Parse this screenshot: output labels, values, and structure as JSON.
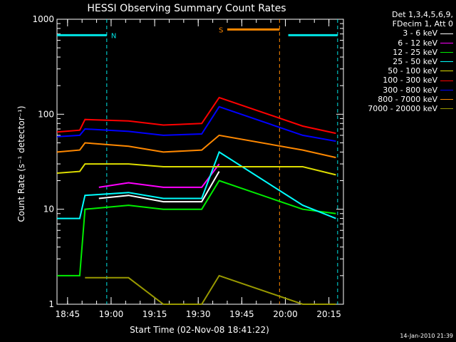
{
  "chart_data": {
    "type": "line",
    "title": "HESSI Observing Summary Count Rates",
    "xlabel": "Start Time (02-Nov-08 18:41:22)",
    "ylabel": "Count Rate (s⁻¹ detector⁻¹)",
    "yscale": "log",
    "ylim": [
      1,
      1000
    ],
    "yticks": [
      "1",
      "10",
      "100",
      "1000"
    ],
    "xlim": [
      "18:41:22",
      "20:20:00"
    ],
    "xticks": [
      "18:45",
      "19:00",
      "19:15",
      "19:30",
      "19:45",
      "20:00",
      "20:15"
    ],
    "legend_header": [
      "Det 1,3,4,5,6,9,",
      "FDecim 1, Att 0"
    ],
    "legend_position": "right",
    "flags": [
      {
        "label": "N",
        "color": "#00e5e5",
        "segments": [
          [
            "18:41:22",
            "18:58:30"
          ],
          [
            "20:01:00",
            "20:18:00"
          ]
        ],
        "y": 680
      },
      {
        "label": "S",
        "color": "#ff8800",
        "segments": [
          [
            "19:40:00",
            "19:58:00"
          ]
        ],
        "y": 780
      }
    ],
    "series": [
      {
        "name": "3 - 6 keV",
        "color": "#ffffff",
        "values": [
          [
            18.93,
            13
          ],
          [
            19.1,
            14
          ],
          [
            19.3,
            12
          ],
          [
            19.52,
            12
          ],
          [
            19.62,
            25
          ]
        ]
      },
      {
        "name": "6 - 12 keV",
        "color": "#ff00ff",
        "values": [
          [
            18.93,
            17
          ],
          [
            19.1,
            19
          ],
          [
            19.3,
            17
          ],
          [
            19.52,
            17
          ],
          [
            19.62,
            30
          ]
        ]
      },
      {
        "name": "12 - 25 keV",
        "color": "#00ee00",
        "values": [
          [
            18.69,
            2
          ],
          [
            18.82,
            2
          ],
          [
            18.85,
            10
          ],
          [
            19.1,
            11
          ],
          [
            19.3,
            10
          ],
          [
            19.52,
            10
          ],
          [
            19.62,
            20
          ],
          [
            20.1,
            10
          ],
          [
            20.29,
            9
          ]
        ]
      },
      {
        "name": "25 - 50 keV",
        "color": "#00ffff",
        "values": [
          [
            18.69,
            8
          ],
          [
            18.82,
            8
          ],
          [
            18.85,
            14
          ],
          [
            19.1,
            15
          ],
          [
            19.3,
            13
          ],
          [
            19.52,
            13
          ],
          [
            19.62,
            40
          ],
          [
            20.1,
            11
          ],
          [
            20.29,
            8
          ]
        ]
      },
      {
        "name": "50 - 100 keV",
        "color": "#dddd00",
        "values": [
          [
            18.69,
            24
          ],
          [
            18.82,
            25
          ],
          [
            18.85,
            30
          ],
          [
            19.1,
            30
          ],
          [
            19.3,
            28
          ],
          [
            19.52,
            28
          ],
          [
            20.1,
            28
          ],
          [
            20.29,
            23
          ]
        ]
      },
      {
        "name": "100 - 300 keV",
        "color": "#ff0000",
        "values": [
          [
            18.69,
            65
          ],
          [
            18.82,
            68
          ],
          [
            18.85,
            88
          ],
          [
            19.1,
            85
          ],
          [
            19.3,
            77
          ],
          [
            19.52,
            80
          ],
          [
            19.62,
            150
          ],
          [
            20.1,
            75
          ],
          [
            20.29,
            63
          ]
        ]
      },
      {
        "name": "300 - 800 keV",
        "color": "#0000ff",
        "values": [
          [
            18.69,
            58
          ],
          [
            18.82,
            60
          ],
          [
            18.85,
            70
          ],
          [
            19.1,
            66
          ],
          [
            19.3,
            60
          ],
          [
            19.52,
            62
          ],
          [
            19.62,
            120
          ],
          [
            20.1,
            60
          ],
          [
            20.29,
            52
          ]
        ]
      },
      {
        "name": "800 - 7000 keV",
        "color": "#ff8800",
        "values": [
          [
            18.69,
            40
          ],
          [
            18.82,
            42
          ],
          [
            18.85,
            50
          ],
          [
            19.1,
            46
          ],
          [
            19.3,
            40
          ],
          [
            19.52,
            42
          ],
          [
            19.62,
            60
          ],
          [
            20.1,
            42
          ],
          [
            20.29,
            35
          ]
        ]
      },
      {
        "name": "7000 - 20000 keV",
        "color": "#999900",
        "values": [
          [
            18.85,
            1.9
          ],
          [
            19.1,
            1.9
          ],
          [
            19.3,
            1
          ],
          [
            19.52,
            1
          ],
          [
            19.62,
            2
          ],
          [
            20.1,
            1
          ],
          [
            20.29,
            1
          ]
        ]
      }
    ]
  },
  "footer": {
    "timestamp": "14-Jan-2010 21:39"
  }
}
